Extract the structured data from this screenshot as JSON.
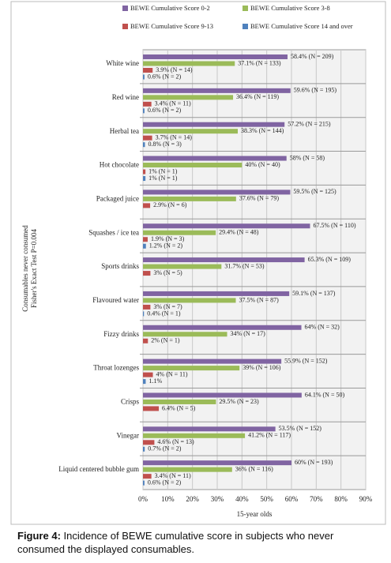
{
  "chart_data": {
    "type": "bar",
    "orientation": "horizontal",
    "categories": [
      "White wine",
      "Red wine",
      "Herbal tea",
      "Hot chocolate",
      "Packaged juice",
      "Squashes / ice tea",
      "Sports drinks",
      "Flavoured water",
      "Fizzy drinks",
      "Throat lozenges",
      "Crisps",
      "Vinegar",
      "Liquid centered bubble gum"
    ],
    "series": [
      {
        "name": "BEWE Cumulative Score 0-2",
        "color": "#8064a2",
        "values": [
          58.4,
          59.6,
          57.2,
          58,
          59.5,
          67.5,
          65.3,
          59.1,
          64,
          55.9,
          64.1,
          53.5,
          60
        ],
        "value_labels": [
          "58.4% (N = 209)",
          "59.6% (N = 195)",
          "57.2% (N = 215)",
          "58% (N = 58)",
          "59.5% (N = 125)",
          "67.5% (N = 110)",
          "65.3% (N = 109)",
          "59.1% (N = 137)",
          "64% (N = 32)",
          "55.9% (N = 152)",
          "64.1% (N = 50)",
          "53.5% (N = 152)",
          "60% (N = 193)"
        ]
      },
      {
        "name": "BEWE Cumulative Score 3-8",
        "color": "#9bbb59",
        "values": [
          37.1,
          36.4,
          38.3,
          40,
          37.6,
          29.4,
          31.7,
          37.5,
          34,
          39,
          29.5,
          41.2,
          36
        ],
        "value_labels": [
          "37.1% (N = 133)",
          "36.4% (N = 119)",
          "38.3% (N = 144)",
          "40% (N = 40)",
          "37.6% (N = 79)",
          "29.4% (N = 48)",
          "31.7% (N = 53)",
          "37.5% (N = 87)",
          "34% (N = 17)",
          "39% (N = 106)",
          "29.5% (N = 23)",
          "41.2% (N = 117)",
          "36% (N = 116)"
        ]
      },
      {
        "name": "BEWE Cumulative Score 9-13",
        "color": "#c0504d",
        "values": [
          3.9,
          3.4,
          3.7,
          1,
          2.9,
          1.9,
          3,
          3,
          2,
          4,
          6.4,
          4.6,
          3.4
        ],
        "value_labels": [
          "3.9% (N = 14)",
          "3.4% (N = 11)",
          "3.7% (N = 14)",
          "1% (N = 1)",
          "2.9% (N = 6)",
          "1.9% (N = 3)",
          "3% (N = 5)",
          "3% (N = 7)",
          "2% (N = 1)",
          "4% (N = 11)",
          "6.4% (N = 5)",
          "4.6% (N = 13)",
          "3.4% (N = 11)"
        ]
      },
      {
        "name": "BEWE Cumulative Score 14 and over",
        "color": "#4f81bd",
        "values": [
          0.6,
          0.6,
          0.8,
          1,
          null,
          1.2,
          null,
          0.4,
          null,
          1.1,
          null,
          0.7,
          0.6
        ],
        "value_labels": [
          "0.6% (N = 2)",
          "0.6% (N = 2)",
          "0.8% (N = 3)",
          "1% (N = 1)",
          null,
          "1.2% (N = 2)",
          null,
          "0.4% (N = 1)",
          null,
          "1.1%",
          null,
          "0.7% (N = 2)",
          "0.6% (N = 2)"
        ]
      }
    ],
    "xlim": [
      0,
      90
    ],
    "xticks": [
      {
        "value": 0,
        "label": "0%"
      },
      {
        "value": 10,
        "label": "10%"
      },
      {
        "value": 20,
        "label": "20%"
      },
      {
        "value": 30,
        "label": "30%"
      },
      {
        "value": 40,
        "label": "40%"
      },
      {
        "value": 50,
        "label": "50%"
      },
      {
        "value": 60,
        "label": "60%"
      },
      {
        "value": 70,
        "label": "70%"
      },
      {
        "value": 80,
        "label": "80%"
      },
      {
        "value": 90,
        "label": "90%"
      }
    ],
    "x_label": "15-year olds",
    "y_label": [
      "Consumables never consumed",
      "Fisher's Exact Test P=0.004"
    ],
    "grid": true,
    "legend": "top",
    "caption_label": "Figure 4:",
    "caption_text": "Incidence of BEWE cumulative score in subjects who never consumed the displayed consumables."
  }
}
